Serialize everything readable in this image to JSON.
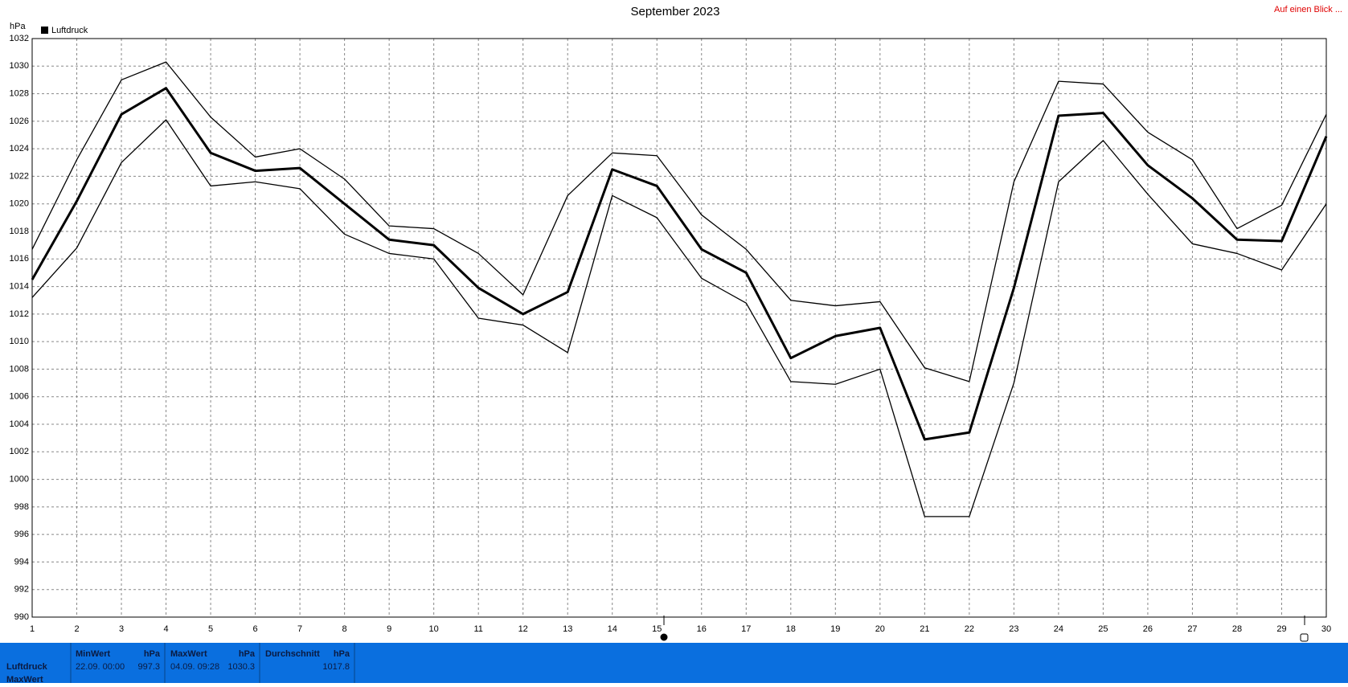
{
  "chart_data": {
    "type": "line",
    "title": "September 2023",
    "y_label": "hPa",
    "link": "Auf einen Blick ...",
    "x": [
      1,
      2,
      3,
      4,
      5,
      6,
      7,
      8,
      9,
      10,
      11,
      12,
      13,
      14,
      15,
      16,
      17,
      18,
      19,
      20,
      21,
      22,
      23,
      24,
      25,
      26,
      27,
      28,
      29,
      30
    ],
    "xlim": [
      1,
      30
    ],
    "xticks": [
      1,
      2,
      3,
      4,
      5,
      6,
      7,
      8,
      9,
      10,
      11,
      12,
      13,
      14,
      15,
      16,
      17,
      18,
      19,
      20,
      21,
      22,
      23,
      24,
      25,
      26,
      27,
      28,
      29,
      30
    ],
    "ylim": [
      990,
      1032
    ],
    "yticks": [
      990,
      992,
      994,
      996,
      998,
      1000,
      1002,
      1004,
      1006,
      1008,
      1010,
      1012,
      1014,
      1016,
      1018,
      1020,
      1022,
      1024,
      1026,
      1028,
      1030,
      1032
    ],
    "grid": true,
    "series": [
      {
        "name": "Luftdruck",
        "color": "#000000",
        "values": [
          1014.5,
          1020.2,
          1026.5,
          1028.4,
          1023.7,
          1022.4,
          1022.6,
          1020.0,
          1017.4,
          1017.0,
          1013.9,
          1012.0,
          1013.6,
          1022.5,
          1021.3,
          1016.7,
          1015.0,
          1008.8,
          1010.4,
          1011.0,
          1002.9,
          1003.4,
          1013.9,
          1026.4,
          1026.6,
          1022.8,
          1020.4,
          1017.4,
          1017.3,
          1024.9
        ]
      },
      {
        "color": "#000000",
        "values": [
          1016.7,
          1023.2,
          1029.0,
          1030.3,
          1026.3,
          1023.4,
          1024.0,
          1021.8,
          1018.4,
          1018.2,
          1016.4,
          1013.4,
          1020.6,
          1023.7,
          1023.5,
          1019.2,
          1016.7,
          1013.0,
          1012.6,
          1012.9,
          1008.1,
          1007.1,
          1021.6,
          1028.9,
          1028.7,
          1025.2,
          1023.2,
          1018.2,
          1019.9,
          1026.5
        ]
      },
      {
        "color": "#000000",
        "values": [
          1013.2,
          1016.8,
          1023.0,
          1026.1,
          1021.3,
          1021.6,
          1021.1,
          1017.8,
          1016.4,
          1016.0,
          1011.7,
          1011.2,
          1009.2,
          1020.6,
          1019.0,
          1014.6,
          1012.8,
          1007.1,
          1006.9,
          1008.0,
          997.3,
          997.3,
          1007.0,
          1021.6,
          1024.6,
          1020.7,
          1017.1,
          1016.4,
          1015.2,
          1020.0
        ]
      }
    ]
  },
  "stats_panel": {
    "row_labels": [
      "Luftdruck",
      "MaxWert"
    ],
    "columns": [
      {
        "header": "MinWert",
        "unit": "hPa",
        "time": "22.09.  00:00",
        "value": "997.3"
      },
      {
        "header": "MaxWert",
        "unit": "hPa",
        "time": "04.09.  09:28",
        "value": "1030.3"
      },
      {
        "header": "Durchschnitt",
        "unit": "hPa",
        "value": "1017.8"
      }
    ]
  }
}
